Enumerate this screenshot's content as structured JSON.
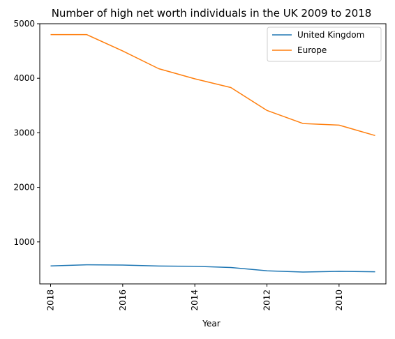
{
  "chart_data": {
    "type": "line",
    "title": "Number of high net worth individuals in the UK 2009 to 2018",
    "xlabel": "Year",
    "ylabel": "",
    "x": [
      2018,
      2017,
      2016,
      2015,
      2014,
      2013,
      2012,
      2011,
      2010,
      2009
    ],
    "x_ticks": [
      2018,
      2016,
      2014,
      2012,
      2010
    ],
    "x_tick_labels": [
      "2018",
      "2016",
      "2014",
      "2012",
      "2010"
    ],
    "x_reversed": true,
    "xlim": [
      2018.3,
      2008.7
    ],
    "y_ticks": [
      1000,
      2000,
      3000,
      4000,
      5000
    ],
    "y_tick_labels": [
      "1000",
      "2000",
      "3000",
      "4000",
      "5000"
    ],
    "ylim": [
      230,
      5000
    ],
    "grid": false,
    "legend_position": "top-right",
    "series": [
      {
        "name": "United Kingdom",
        "color": "#1f77b4",
        "values": [
          560,
          580,
          575,
          558,
          552,
          530,
          470,
          448,
          460,
          452
        ]
      },
      {
        "name": "Europe",
        "color": "#ff7f0e",
        "values": [
          4800,
          4800,
          4500,
          4175,
          3990,
          3830,
          3410,
          3170,
          3140,
          2950
        ]
      }
    ]
  }
}
